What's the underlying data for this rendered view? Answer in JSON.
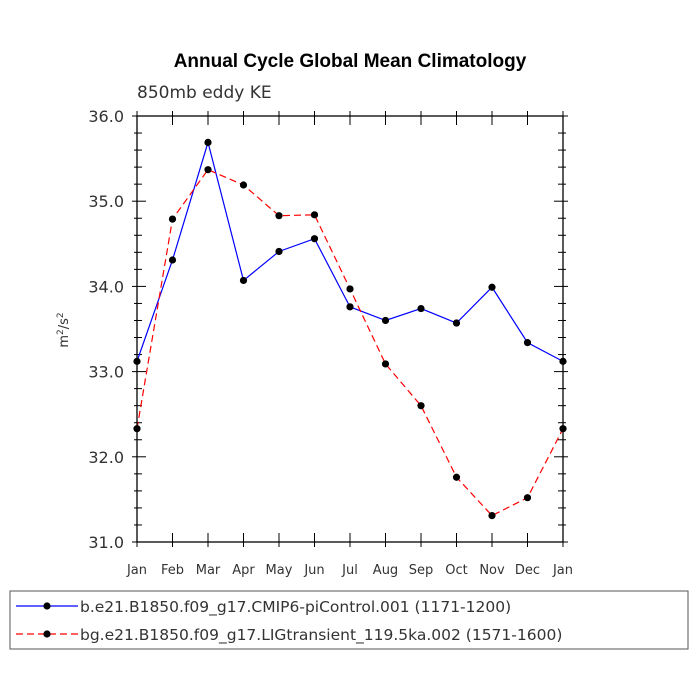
{
  "chart_data": {
    "type": "line",
    "title": "Annual Cycle Global Mean Climatology",
    "subtitle": "850mb eddy KE",
    "ylabel_base": "m",
    "ylabel_mid": "/s",
    "ylabel_exp": "2",
    "categories": [
      "Jan",
      "Feb",
      "Mar",
      "Apr",
      "May",
      "Jun",
      "Jul",
      "Aug",
      "Sep",
      "Oct",
      "Nov",
      "Dec",
      "Jan"
    ],
    "ylim": [
      31.0,
      36.0
    ],
    "yticks": [
      31.0,
      32.0,
      33.0,
      34.0,
      35.0,
      36.0
    ],
    "ytick_labels": [
      "31.0",
      "32.0",
      "33.0",
      "34.0",
      "35.0",
      "36.0"
    ],
    "grid": false,
    "legend_position": "bottom",
    "series": [
      {
        "name": "b.e21.B1850.f09_g17.CMIP6-piControl.001 (1171-1200)",
        "color": "#0000ff",
        "dash": "solid",
        "values": [
          33.12,
          34.31,
          35.69,
          34.07,
          34.41,
          34.56,
          33.76,
          33.6,
          33.74,
          33.57,
          33.99,
          33.34,
          33.12
        ]
      },
      {
        "name": "bg.e21.B1850.f09_g17.LIGtransient_119.5ka.002 (1571-1600)",
        "color": "#ff0000",
        "dash": "dashed",
        "values": [
          32.33,
          34.79,
          35.37,
          35.19,
          34.83,
          34.84,
          33.97,
          33.09,
          32.6,
          31.76,
          31.31,
          31.52,
          32.33
        ]
      }
    ]
  }
}
